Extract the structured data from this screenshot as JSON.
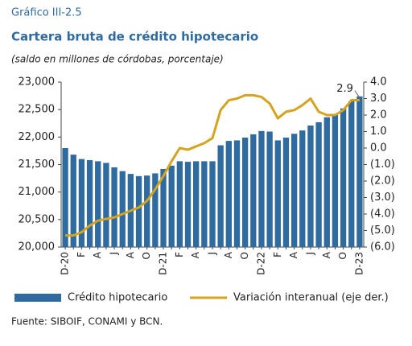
{
  "chart_data": {
    "type": "bar",
    "label": "Gráfico III-2.5",
    "title": "Cartera bruta de crédito hipotecario",
    "subtitle": "(saldo en millones de córdobas, porcentaje)",
    "source": "Fuente: SIBOIF, CONAMI y BCN.",
    "categories": [
      "D-20",
      null,
      "F",
      null,
      "A",
      null,
      "J",
      null,
      "A",
      null,
      "O",
      null,
      "D-21",
      null,
      "F",
      null,
      "A",
      null,
      "J",
      null,
      "A",
      null,
      "O",
      null,
      "D-22",
      null,
      "F",
      null,
      "A",
      null,
      "J",
      null,
      "A",
      null,
      "O",
      null,
      "D-23"
    ],
    "series": [
      {
        "name": "Crédito hipotecario",
        "type": "bar",
        "color": "#2f6b9f",
        "axis": "y",
        "values": [
          21800,
          21680,
          21600,
          21580,
          21560,
          21530,
          21450,
          21380,
          21330,
          21290,
          21300,
          21340,
          21420,
          21480,
          21560,
          21550,
          21560,
          21560,
          21560,
          21850,
          21930,
          21940,
          21990,
          22050,
          22110,
          22100,
          21940,
          21990,
          22060,
          22120,
          22210,
          22270,
          22360,
          22400,
          22520,
          22650,
          22740
        ]
      },
      {
        "name": "Variación interanual (eje der.)",
        "type": "line",
        "color": "#d4a320",
        "axis": "y2",
        "values": [
          -5.3,
          -5.3,
          -5.1,
          -4.7,
          -4.4,
          -4.3,
          -4.2,
          -4.0,
          -3.8,
          -3.6,
          -3.2,
          -2.5,
          -1.7,
          -0.8,
          0.0,
          -0.1,
          0.1,
          0.3,
          0.6,
          2.3,
          2.9,
          3.0,
          3.2,
          3.2,
          3.1,
          2.7,
          1.8,
          2.2,
          2.3,
          2.6,
          3.0,
          2.2,
          2.0,
          2.0,
          2.3,
          2.9,
          2.9
        ],
        "value_labels": [
          null,
          null,
          null,
          null,
          null,
          null,
          null,
          null,
          null,
          null,
          null,
          null,
          null,
          null,
          null,
          null,
          null,
          null,
          null,
          null,
          null,
          null,
          null,
          null,
          null,
          null,
          null,
          null,
          null,
          null,
          null,
          null,
          null,
          null,
          null,
          null,
          "2.9"
        ]
      }
    ],
    "ylim": [
      20000,
      23000
    ],
    "yticks": [
      {
        "value": 20000,
        "label": "20,000"
      },
      {
        "value": 20500,
        "label": "20,500"
      },
      {
        "value": 21000,
        "label": "21,000"
      },
      {
        "value": 21500,
        "label": "21,500"
      },
      {
        "value": 22000,
        "label": "22,000"
      },
      {
        "value": 22500,
        "label": "22,500"
      },
      {
        "value": 23000,
        "label": "23,000"
      }
    ],
    "y2lim": [
      -6,
      4
    ],
    "y2ticks": [
      {
        "value": -6,
        "label": "(6.0)"
      },
      {
        "value": -5,
        "label": "(5.0)"
      },
      {
        "value": -4,
        "label": "(4.0)"
      },
      {
        "value": -3,
        "label": "(3.0)"
      },
      {
        "value": -2,
        "label": "(2.0)"
      },
      {
        "value": -1,
        "label": "(1.0)"
      },
      {
        "value": 0,
        "label": "0.0"
      },
      {
        "value": 1,
        "label": "1.0"
      },
      {
        "value": 2,
        "label": "2.0"
      },
      {
        "value": 3,
        "label": "3.0"
      },
      {
        "value": 4,
        "label": "4.0"
      }
    ],
    "grid": false,
    "legend": "bottom"
  }
}
